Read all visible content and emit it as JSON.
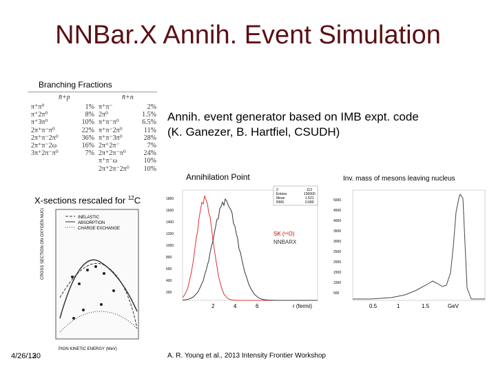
{
  "title": "NNBar.X Annih. Event Simulation",
  "branching_fractions": {
    "label": "Branching Fractions",
    "left_header": "n̄+p",
    "right_header": "n̄+n",
    "rows": [
      [
        "π⁺π⁰",
        "1%",
        "π⁺π⁻",
        "2%"
      ],
      [
        "π⁺2π⁰",
        "8%",
        "2π⁰",
        "1.5%"
      ],
      [
        "π⁺3π⁰",
        "10%",
        "π⁺π⁻π⁰",
        "6.5%"
      ],
      [
        "2π⁺π⁻π⁰",
        "22%",
        "π⁺π⁻2π⁰",
        "11%"
      ],
      [
        "2π⁺π⁻2π⁰",
        "36%",
        "π⁺π⁻3π⁰",
        "28%"
      ],
      [
        "2π⁺π⁻2ω",
        "16%",
        "2π⁺2π⁻",
        "7%"
      ],
      [
        "3π⁺2π⁻π⁰",
        "7%",
        "2π⁺2π⁻π⁰",
        "24%"
      ],
      [
        "",
        "",
        "π⁺π⁻ω",
        "10%"
      ],
      [
        "",
        "",
        "2π⁺2π⁻2π⁰",
        "10%"
      ]
    ]
  },
  "generator": {
    "line1": "Annih. event generator based on IMB expt. code",
    "line2": "(K. Ganezer, B. Hartfiel, CSUDH)"
  },
  "annihilation_label": "Annihilation Point",
  "inv_mass_label": "Inv. mass of mesons leaving nucleus",
  "xsections_label": "X-sections rescaled for ",
  "xsections_sup": "12",
  "xsections_suffix": "C",
  "xs_legend": [
    "INELASTIC",
    "ABSORPTION",
    "CHARGE EXCHANGE"
  ],
  "mid_plot": {
    "legend_sk": "SK (¹⁶O)",
    "legend_nnbarx": "NNBARX",
    "x_ticks": [
      "2",
      "4",
      "6"
    ],
    "x_label": "r (fermi)",
    "y_ticks": [
      "1800",
      "1600",
      "1400",
      "1200",
      "1000",
      "800",
      "600",
      "400",
      "200"
    ],
    "stats_box": [
      "2",
      "113",
      "Entries",
      "100000",
      "Mean",
      "1.521",
      "RMS",
      "0.680"
    ]
  },
  "right_plot": {
    "x_ticks": [
      "0.5",
      "1",
      "1.5",
      "GeV"
    ],
    "y_ticks": [
      "5000",
      "4500",
      "4000",
      "3500",
      "3000",
      "2500",
      "2000",
      "1500",
      "1000",
      "500"
    ]
  },
  "date": "4/26/13",
  "page_number": "20",
  "footer": "A. R. Young et al., 2013 Intensity Frontier Workshop",
  "colors": {
    "title": "#5a0f14",
    "sk_curve": "#e03030",
    "nnbarx_curve": "#333333",
    "legend_sk": "#c00000"
  }
}
